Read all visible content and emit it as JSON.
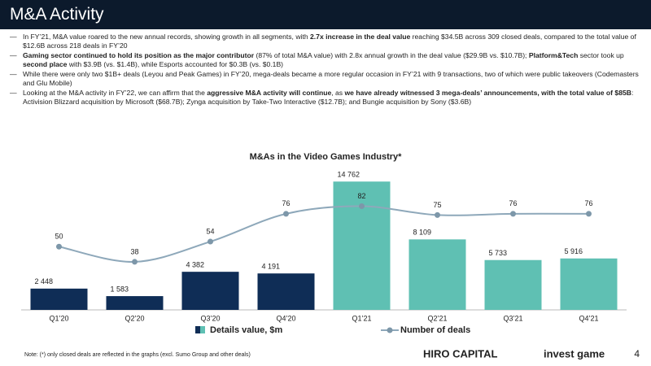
{
  "header": {
    "title": "M&A Activity"
  },
  "bullets": [
    [
      {
        "text": "In FY’21, M&A value roared to the new annual records, showing growth in all segments, with "
      },
      {
        "text": "2.7x increase in the deal value",
        "bold": true
      },
      {
        "text": " reaching $34.5B across 309 closed deals, compared to the total value of $12.6B across 218 deals in FY’20"
      }
    ],
    [
      {
        "text": "Gaming sector continued to hold its position as the major contributor",
        "bold": true
      },
      {
        "text": " (87% of total M&A value) with 2.8x annual growth in the deal value ($29.9B vs. $10.7B); "
      },
      {
        "text": "Platform&Tech",
        "bold": true
      },
      {
        "text": " sector took up "
      },
      {
        "text": "second place",
        "bold": true
      },
      {
        "text": " with $3.9B (vs. $1.4B), while Esports accounted for $0.3B (vs. $0.1B)"
      }
    ],
    [
      {
        "text": "While there were only two $1B+ deals (Leyou and Peak Games) in FY’20, mega-deals became a more regular occasion in FY’21 with 9 transactions, two of which were public takeovers (Codemasters and Glu Mobile)"
      }
    ],
    [
      {
        "text": "Looking at the M&A activity in FY’22, we can affirm that the "
      },
      {
        "text": "aggressive M&A activity will continue",
        "bold": true
      },
      {
        "text": ", as "
      },
      {
        "text": "we have already witnessed 3 mega-deals’ announcements, with the total value of $85B",
        "bold": true
      },
      {
        "text": ": Activision Blizzard acquisition by Microsoft ($68.7B); Zynga acquisition by Take-Two Interactive ($12.7B); and Bungie acquisition by Sony ($3.6B)"
      }
    ]
  ],
  "chart_data": {
    "type": "bar_line",
    "title": "M&As in the Video Games Industry*",
    "categories": [
      "Q1’20",
      "Q2’20",
      "Q3’20",
      "Q4’20",
      "Q1’21",
      "Q2’21",
      "Q3’21",
      "Q4’21"
    ],
    "series": [
      {
        "name": "Details value, $m",
        "colors": [
          "#0f2d56",
          "#0f2d56",
          "#0f2d56",
          "#0f2d56",
          "#5fc0b3",
          "#5fc0b3",
          "#5fc0b3",
          "#5fc0b3"
        ],
        "values": [
          2448,
          1583,
          4382,
          4191,
          14762,
          8109,
          5733,
          5916
        ],
        "value_labels": [
          "2 448",
          "1 583",
          "4 382",
          "4 191",
          "14 762",
          "8 109",
          "5 733",
          "5 916"
        ]
      },
      {
        "name": "Number of deals",
        "color": "#8ea8ba",
        "axis": "y2",
        "values": [
          50,
          38,
          54,
          76,
          82,
          75,
          76,
          76
        ]
      }
    ],
    "ylim": [
      0,
      16000
    ],
    "y2lim": [
      0,
      110
    ]
  },
  "footer": {
    "note": "Note: (*) only closed deals are reflected in the graphs (excl. Sumo Group and other deals)",
    "brands": [
      "HIRO CAPITAL",
      "invest game"
    ],
    "page": 4
  }
}
